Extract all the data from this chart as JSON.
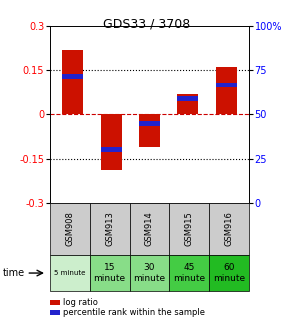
{
  "title": "GDS33 / 3708",
  "categories": [
    "GSM908",
    "GSM913",
    "GSM914",
    "GSM915",
    "GSM916"
  ],
  "log_ratio": [
    0.22,
    -0.19,
    -0.11,
    0.07,
    0.16
  ],
  "percentile_rank": [
    0.13,
    -0.12,
    -0.03,
    0.055,
    0.1
  ],
  "ylim": [
    -0.3,
    0.3
  ],
  "yticks_left": [
    -0.3,
    -0.15,
    0,
    0.15,
    0.3
  ],
  "yticks_right": [
    0,
    25,
    50,
    75,
    100
  ],
  "bar_color": "#cc1100",
  "marker_color": "#2222cc",
  "time_labels": [
    "5 minute",
    "15\nminute",
    "30\nminute",
    "45\nminute",
    "60\nminute"
  ],
  "time_bg_colors": [
    "#cceecc",
    "#88dd88",
    "#88dd88",
    "#44cc44",
    "#22bb22"
  ],
  "gsm_bg_color": "#cccccc",
  "zero_line_color": "#cc0000",
  "bar_width": 0.55
}
